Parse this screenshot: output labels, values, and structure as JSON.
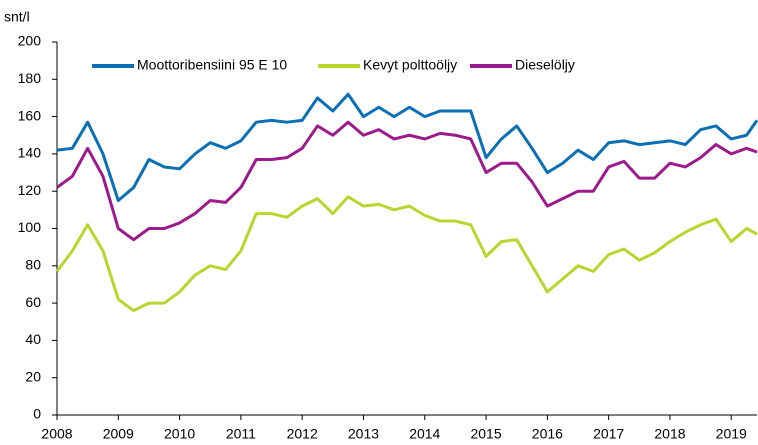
{
  "chart_data": {
    "type": "line",
    "y_label": "snt/l",
    "x": [
      2008.0,
      2008.25,
      2008.5,
      2008.75,
      2009.0,
      2009.25,
      2009.5,
      2009.75,
      2010.0,
      2010.25,
      2010.5,
      2010.75,
      2011.0,
      2011.25,
      2011.5,
      2011.75,
      2012.0,
      2012.25,
      2012.5,
      2012.75,
      2013.0,
      2013.25,
      2013.5,
      2013.75,
      2014.0,
      2014.25,
      2014.5,
      2014.75,
      2015.0,
      2015.25,
      2015.5,
      2015.75,
      2016.0,
      2016.25,
      2016.5,
      2016.75,
      2017.0,
      2017.25,
      2017.5,
      2017.75,
      2018.0,
      2018.25,
      2018.5,
      2018.75,
      2019.0,
      2019.25,
      2019.42
    ],
    "series": [
      {
        "name": "Moottoribensiini 95 E 10",
        "color": "#0a6fb5",
        "values": [
          142,
          143,
          157,
          140,
          115,
          122,
          137,
          133,
          132,
          140,
          146,
          143,
          147,
          157,
          158,
          157,
          158,
          170,
          163,
          172,
          160,
          165,
          160,
          165,
          160,
          163,
          163,
          163,
          138,
          148,
          155,
          143,
          130,
          135,
          142,
          137,
          146,
          147,
          145,
          146,
          147,
          145,
          153,
          155,
          148,
          150,
          158
        ]
      },
      {
        "name": "Kevyt polttoöljy",
        "color": "#bcd42e",
        "values": [
          77,
          88,
          102,
          88,
          62,
          56,
          60,
          60,
          66,
          75,
          80,
          78,
          88,
          108,
          108,
          106,
          112,
          116,
          108,
          117,
          112,
          113,
          110,
          112,
          107,
          104,
          104,
          102,
          85,
          93,
          94,
          80,
          66,
          73,
          80,
          77,
          86,
          89,
          83,
          87,
          93,
          98,
          102,
          105,
          93,
          100,
          97
        ]
      },
      {
        "name": "Dieselöljy",
        "color": "#9c1a8c",
        "values": [
          122,
          128,
          143,
          128,
          100,
          94,
          100,
          100,
          103,
          108,
          115,
          114,
          122,
          137,
          137,
          138,
          143,
          155,
          150,
          157,
          150,
          153,
          148,
          150,
          148,
          151,
          150,
          148,
          130,
          135,
          135,
          125,
          112,
          116,
          120,
          120,
          133,
          136,
          127,
          127,
          135,
          133,
          138,
          145,
          140,
          143,
          141
        ]
      }
    ],
    "xlim": [
      2008,
      2019.42
    ],
    "xticks": [
      2008,
      2009,
      2010,
      2011,
      2012,
      2013,
      2014,
      2015,
      2016,
      2017,
      2018,
      2019
    ],
    "ylim": [
      0,
      200
    ],
    "yticks": [
      0,
      20,
      40,
      60,
      80,
      100,
      120,
      140,
      160,
      180,
      200
    ],
    "grid": false,
    "legend": "top"
  }
}
